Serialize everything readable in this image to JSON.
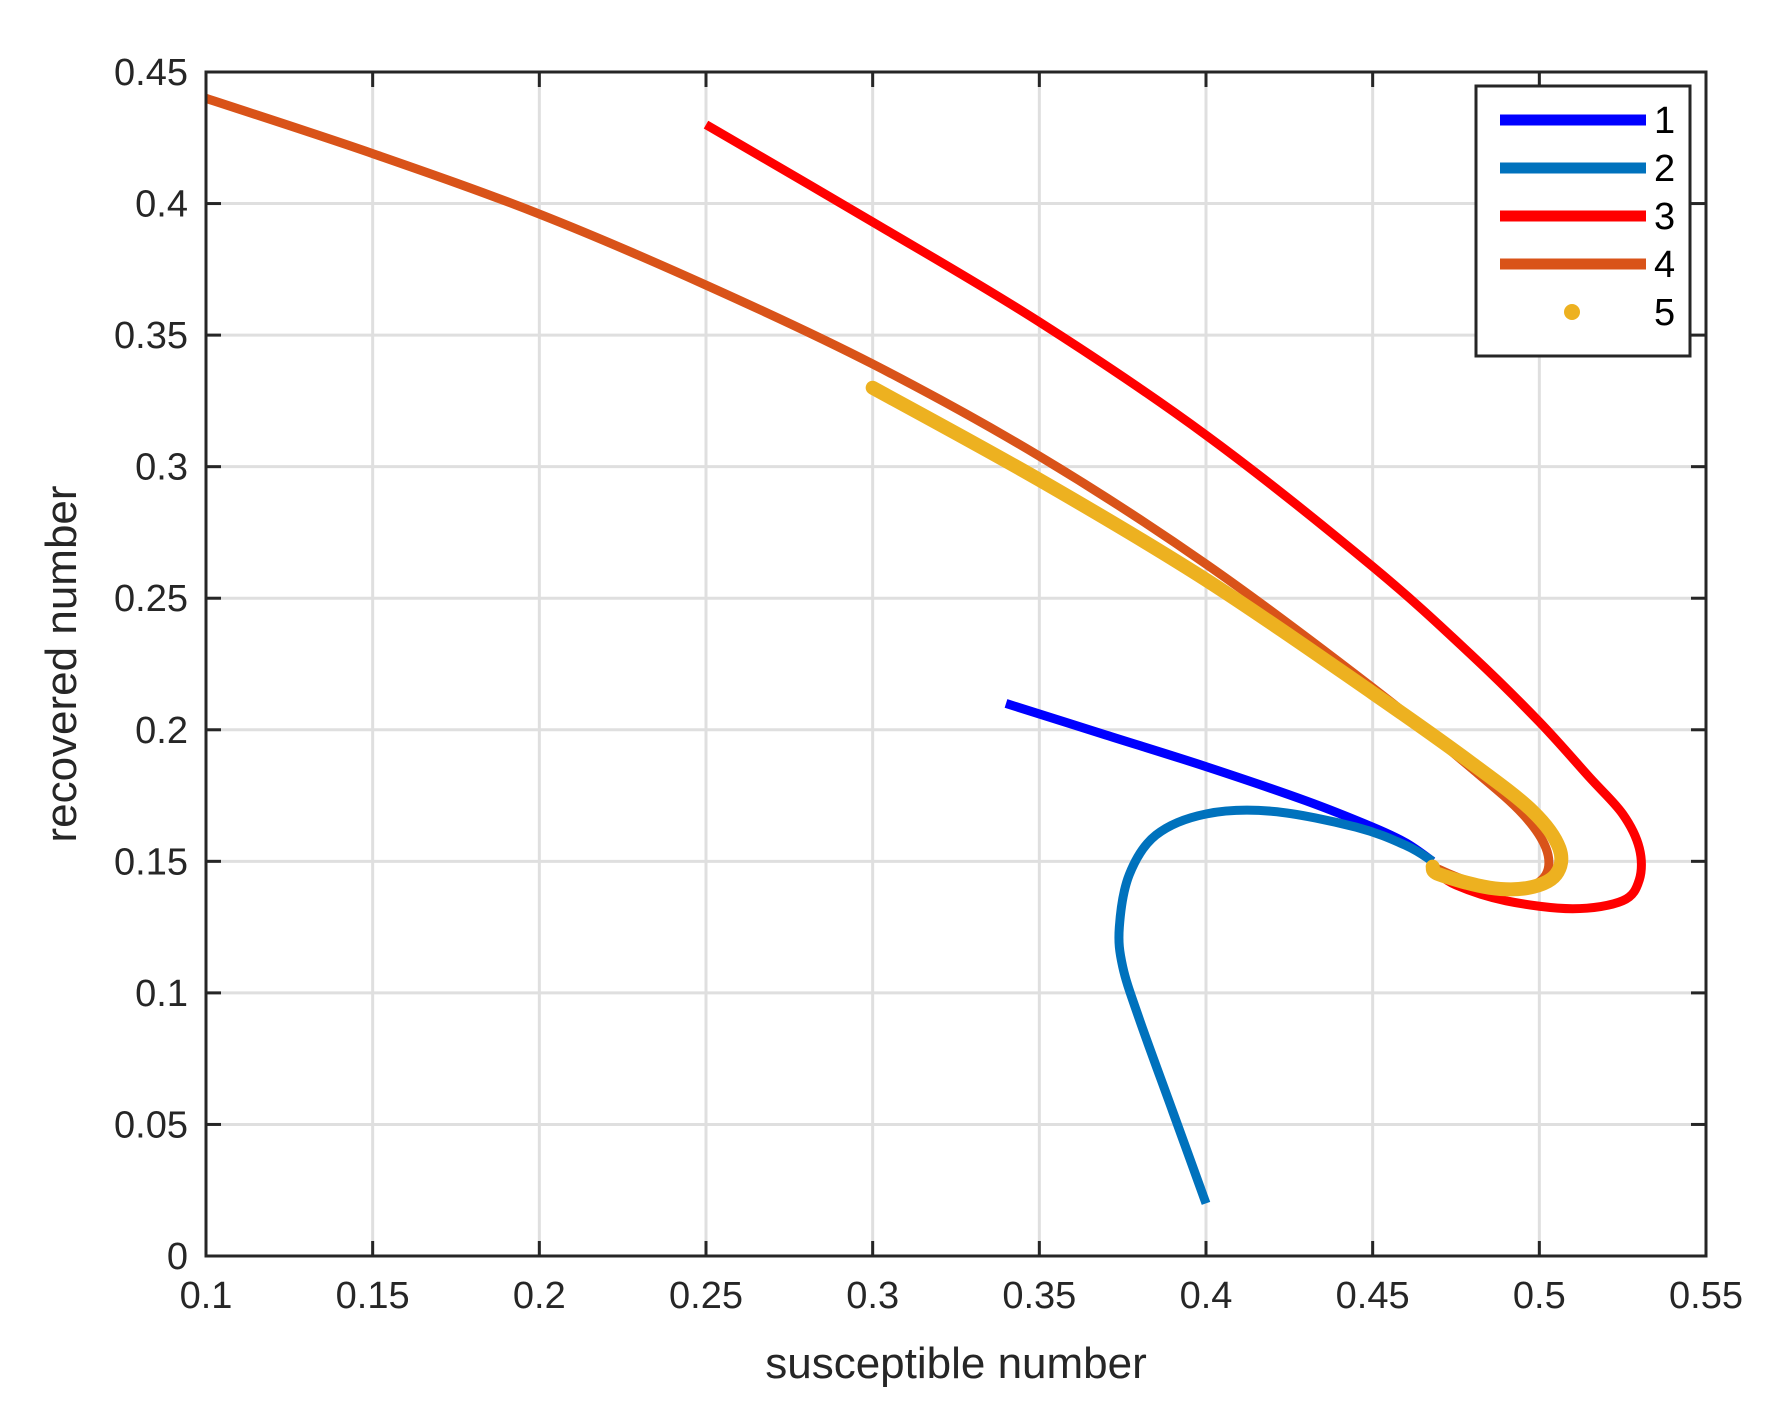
{
  "chart_data": {
    "type": "line",
    "xlabel": "susceptible number",
    "ylabel": "recovered number",
    "xlim": [
      0.1,
      0.55
    ],
    "ylim": [
      0,
      0.45
    ],
    "xticks": [
      0.1,
      0.15,
      0.2,
      0.25,
      0.3,
      0.35,
      0.4,
      0.45,
      0.5,
      0.55
    ],
    "xtick_labels": [
      "0.1",
      "0.15",
      "0.2",
      "0.25",
      "0.3",
      "0.35",
      "0.4",
      "0.45",
      "0.5",
      "0.55"
    ],
    "yticks": [
      0,
      0.05,
      0.1,
      0.15,
      0.2,
      0.25,
      0.3,
      0.35,
      0.4,
      0.45
    ],
    "ytick_labels": [
      "0",
      "0.05",
      "0.1",
      "0.15",
      "0.2",
      "0.25",
      "0.3",
      "0.35",
      "0.4",
      "0.45"
    ],
    "grid": true,
    "legend_position": "top-right",
    "series": [
      {
        "name": "1",
        "color": "#0000ff",
        "style": "line",
        "points": [
          [
            0.34,
            0.21
          ],
          [
            0.37,
            0.198
          ],
          [
            0.4,
            0.186
          ],
          [
            0.43,
            0.173
          ],
          [
            0.45,
            0.163
          ],
          [
            0.46,
            0.157
          ],
          [
            0.468,
            0.15
          ]
        ]
      },
      {
        "name": "2",
        "color": "#0072bd",
        "style": "line",
        "points": [
          [
            0.4,
            0.02
          ],
          [
            0.39,
            0.055
          ],
          [
            0.38,
            0.09
          ],
          [
            0.375,
            0.11
          ],
          [
            0.374,
            0.125
          ],
          [
            0.377,
            0.145
          ],
          [
            0.385,
            0.16
          ],
          [
            0.4,
            0.168
          ],
          [
            0.42,
            0.169
          ],
          [
            0.445,
            0.163
          ],
          [
            0.46,
            0.156
          ],
          [
            0.468,
            0.15
          ]
        ]
      },
      {
        "name": "3",
        "color": "#ff0000",
        "style": "line",
        "points": [
          [
            0.25,
            0.43
          ],
          [
            0.3,
            0.393
          ],
          [
            0.35,
            0.355
          ],
          [
            0.4,
            0.312
          ],
          [
            0.45,
            0.262
          ],
          [
            0.48,
            0.228
          ],
          [
            0.5,
            0.203
          ],
          [
            0.515,
            0.182
          ],
          [
            0.525,
            0.168
          ],
          [
            0.53,
            0.155
          ],
          [
            0.53,
            0.143
          ],
          [
            0.525,
            0.135
          ],
          [
            0.51,
            0.132
          ],
          [
            0.49,
            0.135
          ],
          [
            0.475,
            0.141
          ],
          [
            0.468,
            0.147
          ]
        ]
      },
      {
        "name": "4",
        "color": "#d95319",
        "style": "line",
        "points": [
          [
            0.1,
            0.44
          ],
          [
            0.15,
            0.419
          ],
          [
            0.2,
            0.396
          ],
          [
            0.25,
            0.369
          ],
          [
            0.3,
            0.339
          ],
          [
            0.35,
            0.304
          ],
          [
            0.4,
            0.263
          ],
          [
            0.45,
            0.216
          ],
          [
            0.48,
            0.185
          ],
          [
            0.495,
            0.168
          ],
          [
            0.502,
            0.155
          ],
          [
            0.502,
            0.145
          ],
          [
            0.495,
            0.14
          ],
          [
            0.48,
            0.142
          ],
          [
            0.468,
            0.148
          ]
        ]
      },
      {
        "name": "5",
        "color": "#edb120",
        "style": "dots",
        "points": [
          [
            0.3,
            0.33
          ],
          [
            0.35,
            0.295
          ],
          [
            0.4,
            0.257
          ],
          [
            0.45,
            0.214
          ],
          [
            0.48,
            0.187
          ],
          [
            0.498,
            0.169
          ],
          [
            0.506,
            0.155
          ],
          [
            0.505,
            0.145
          ],
          [
            0.497,
            0.14
          ],
          [
            0.485,
            0.14
          ],
          [
            0.47,
            0.145
          ],
          [
            0.468,
            0.148
          ]
        ]
      }
    ]
  }
}
